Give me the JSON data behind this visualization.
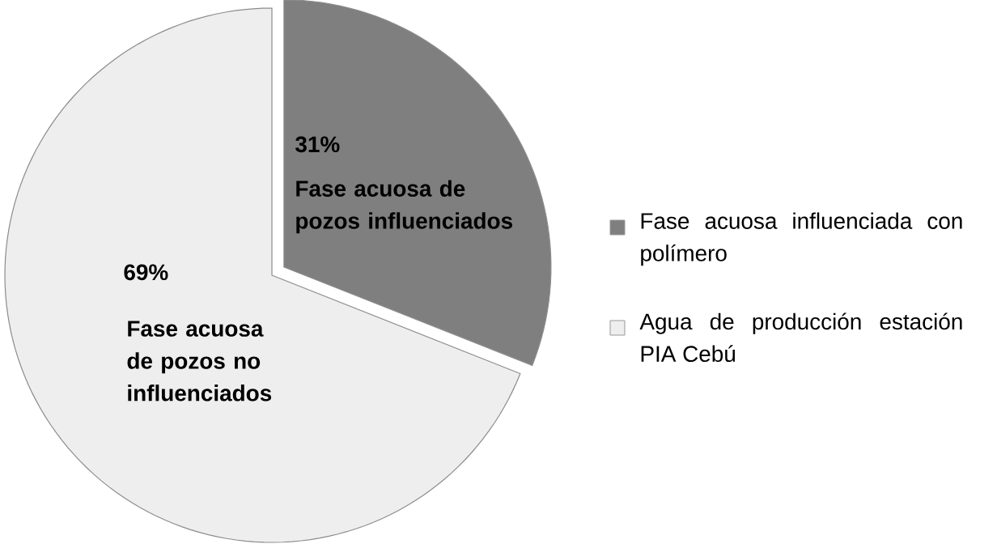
{
  "chart_data": {
    "type": "pie",
    "categories": [
      "Fase acuosa influenciada con polímero",
      "Agua de producción estación PIA Cebú"
    ],
    "values": [
      31,
      69
    ],
    "value_labels": [
      "31%",
      "69%"
    ],
    "colors": [
      "#7f7f7f",
      "#eeeeee"
    ],
    "annotations": [
      "Fase acuosa de pozos influenciados",
      "Fase acuosa de pozos no influenciados"
    ],
    "legend": "right"
  }
}
